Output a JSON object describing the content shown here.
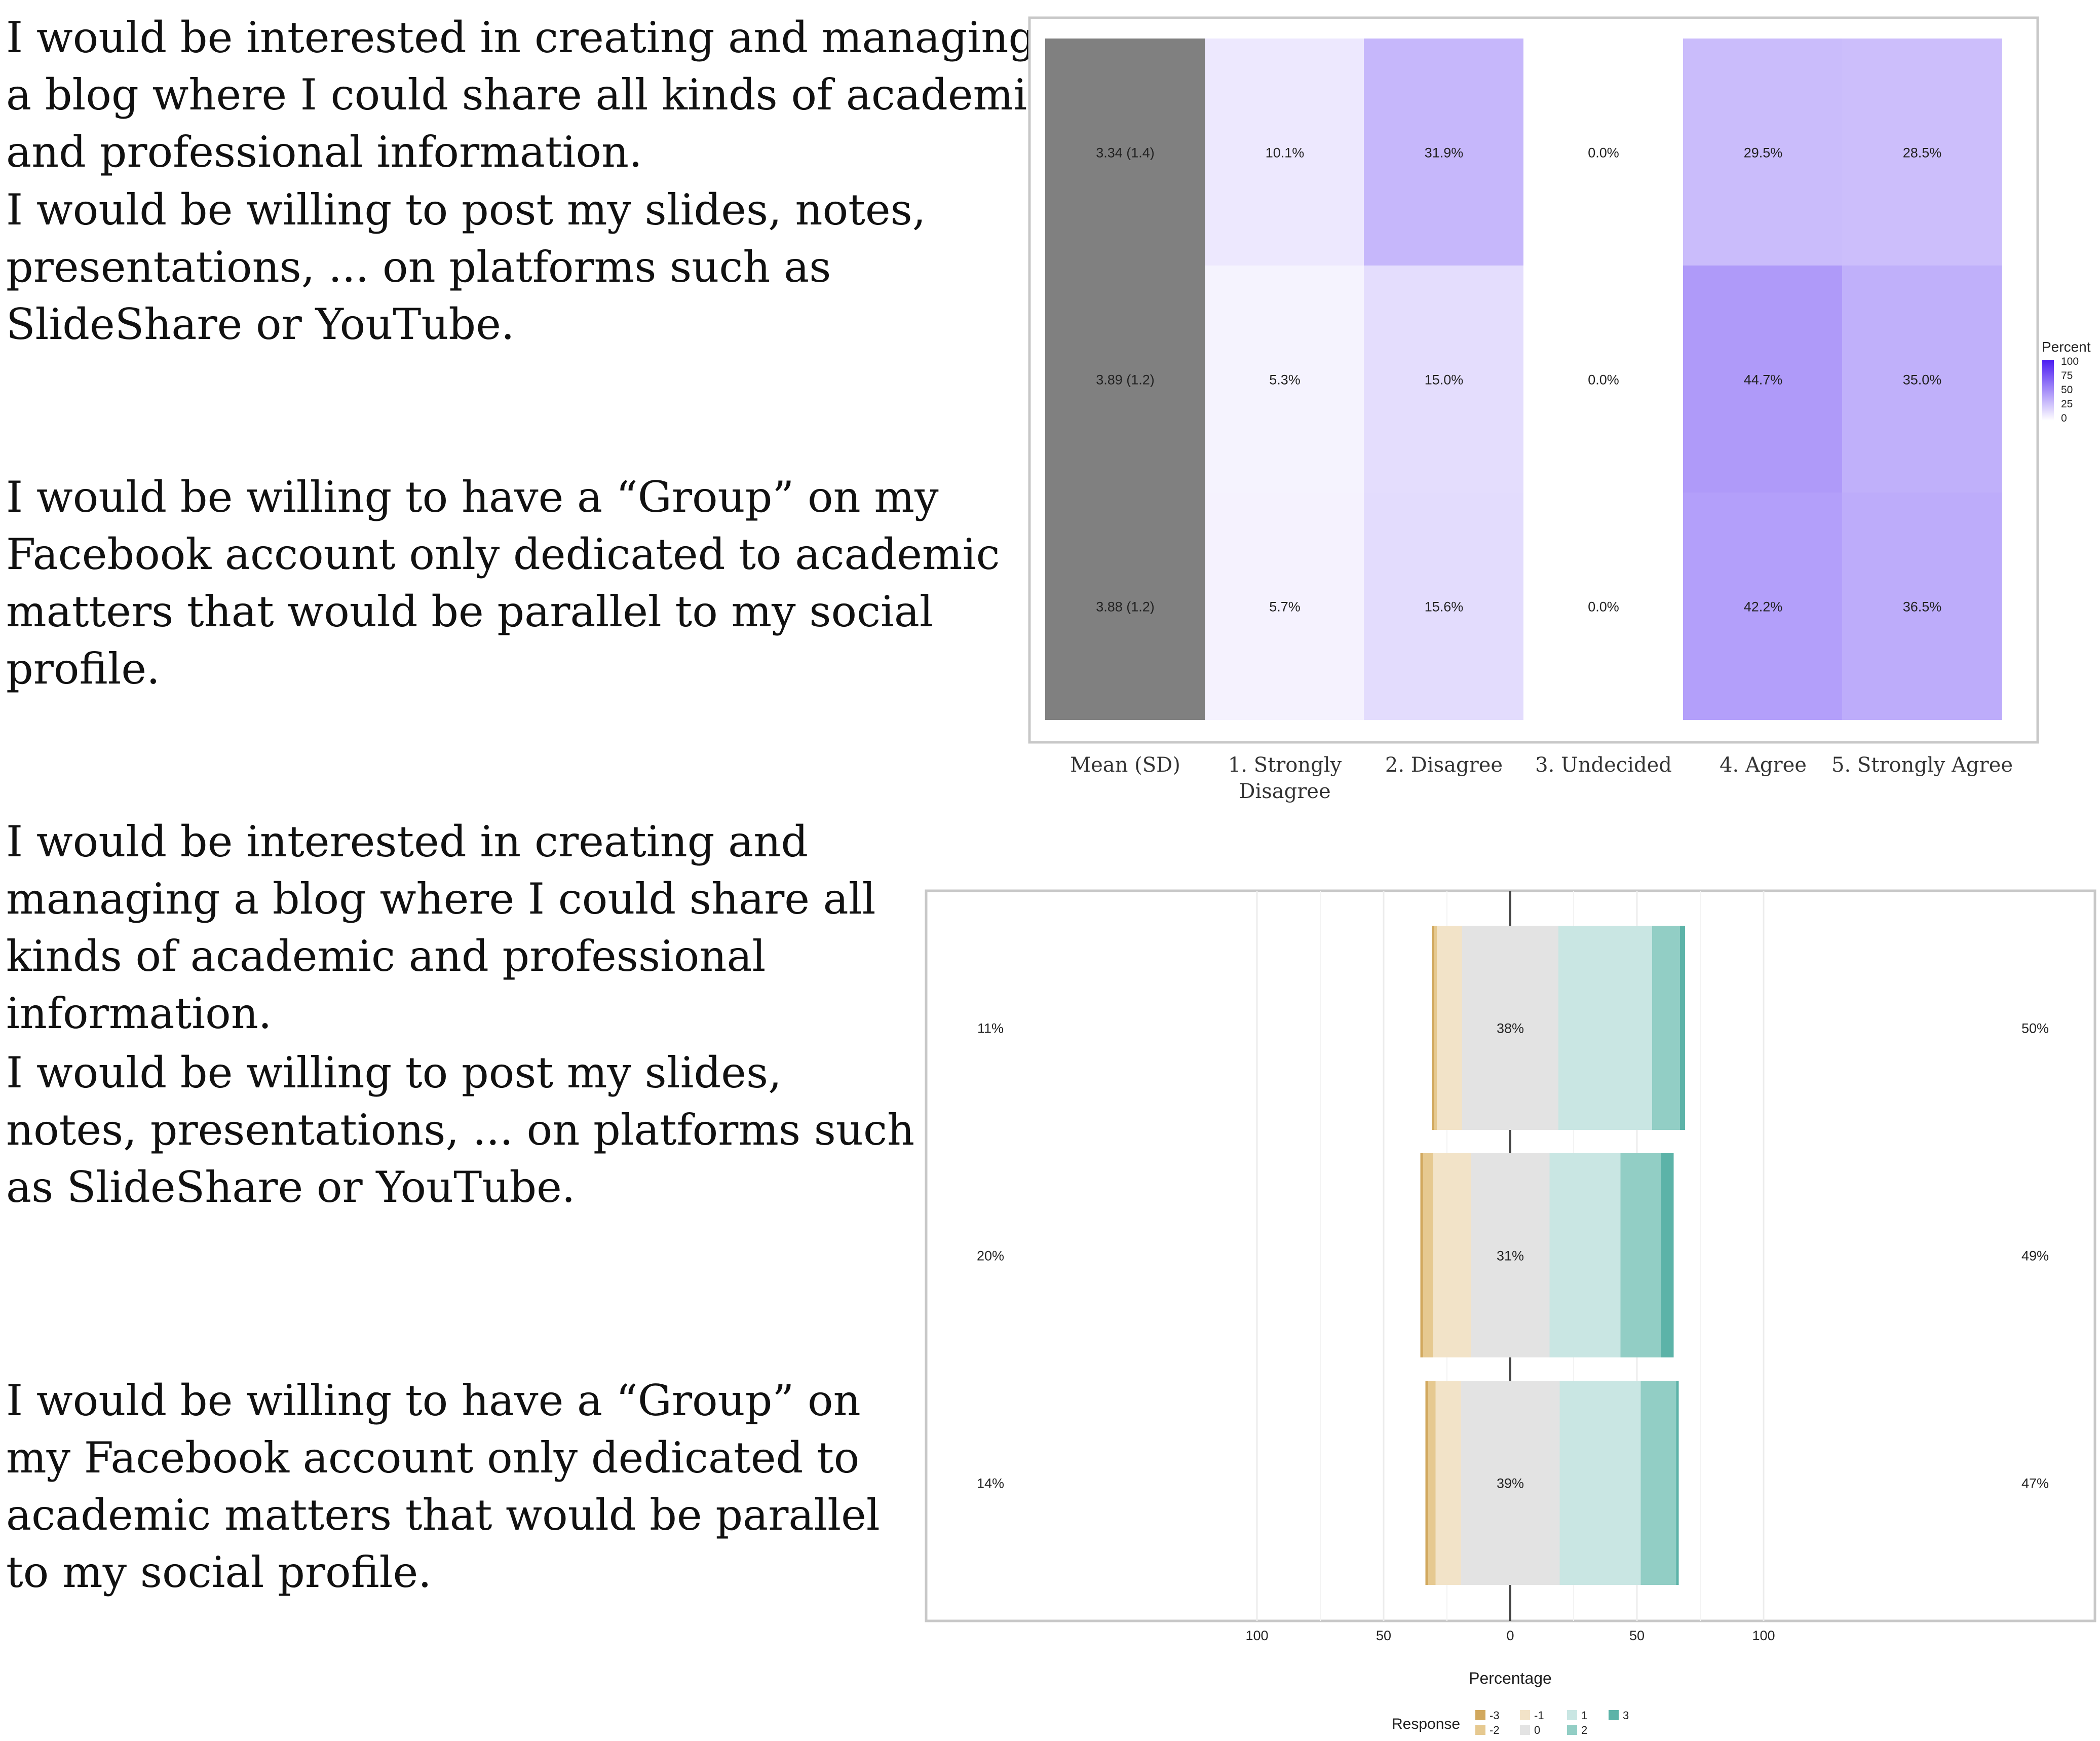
{
  "questions": [
    [
      "I would be interested in creating and managing",
      "a blog where I could share all kinds of academic",
      "and professional information."
    ],
    [
      "I would be willing to post my slides, notes,",
      "presentations, ... on platforms such as",
      "SlideShare or YouTube."
    ],
    [
      "I would be willing to have a “Group” on my",
      "Facebook account only dedicated to academic",
      "matters that would be parallel to my social",
      "profile."
    ]
  ],
  "questions_lower": [
    [
      "I would be interested in creating and",
      "managing a blog where I could share all",
      "kinds of academic and professional",
      "information."
    ],
    [
      "I would be willing to post my slides,",
      "notes, presentations, ... on platforms such",
      "as SlideShare or YouTube."
    ],
    [
      "I would be willing to have a “Group” on",
      "my Facebook account only dedicated to",
      "academic matters that would be parallel",
      "to my social profile."
    ]
  ],
  "chart_data": [
    {
      "type": "heatmap",
      "title": "",
      "columns": [
        [
          "Mean (SD)"
        ],
        [
          "1. Strongly",
          "Disagree"
        ],
        [
          "2. Disagree"
        ],
        [
          "3. Undecided"
        ],
        [
          "4. Agree"
        ],
        [
          "5. Strongly Agree"
        ]
      ],
      "rows": [
        {
          "mean_sd": "3.34 (1.4)",
          "percents": [
            10.1,
            31.9,
            0.0,
            29.5,
            28.5
          ],
          "labels": [
            "10.1%",
            "31.9%",
            "0.0%",
            "29.5%",
            "28.5%"
          ]
        },
        {
          "mean_sd": "3.89 (1.2)",
          "percents": [
            5.3,
            15.0,
            0.0,
            44.7,
            35.0
          ],
          "labels": [
            "5.3%",
            "15.0%",
            "0.0%",
            "44.7%",
            "35.0%"
          ]
        },
        {
          "mean_sd": "3.88 (1.2)",
          "percents": [
            5.7,
            15.6,
            0.0,
            42.2,
            36.5
          ],
          "labels": [
            "5.7%",
            "15.6%",
            "0.0%",
            "42.2%",
            "36.5%"
          ]
        }
      ],
      "legend": {
        "title": "Percent",
        "ticks": [
          "100",
          "75",
          "50",
          "25",
          "0"
        ],
        "range": [
          0,
          100
        ]
      },
      "colors": {
        "mean_fill": "#808080",
        "low": "#ffffff",
        "high": "#4b1cf2"
      }
    },
    {
      "type": "bar",
      "subtype": "diverging-stacked",
      "xlabel": "Percentage",
      "xlim": [
        -100,
        100
      ],
      "xticks": [
        "100",
        "50",
        "0",
        "50",
        "100"
      ],
      "xtick_values": [
        -100,
        -50,
        0,
        50,
        100
      ],
      "legend_title": "Response",
      "categories": [
        "-3",
        "-2",
        "-1",
        "0",
        "1",
        "2",
        "3"
      ],
      "colors": [
        "#d1a85e",
        "#e6c990",
        "#f2e3c8",
        "#e3e3e3",
        "#c9e6e3",
        "#92cec5",
        "#5cb3a8"
      ],
      "series": [
        {
          "values": [
            1,
            1,
            10,
            38,
            37,
            11,
            2
          ],
          "left_label": "11%",
          "center_label": "38%",
          "right_label": "50%"
        },
        {
          "values": [
            1,
            4,
            15,
            31,
            28,
            16,
            5
          ],
          "left_label": "20%",
          "center_label": "31%",
          "right_label": "49%"
        },
        {
          "values": [
            1,
            3,
            10,
            39,
            32,
            14,
            1
          ],
          "left_label": "14%",
          "center_label": "39%",
          "right_label": "47%"
        }
      ]
    }
  ]
}
